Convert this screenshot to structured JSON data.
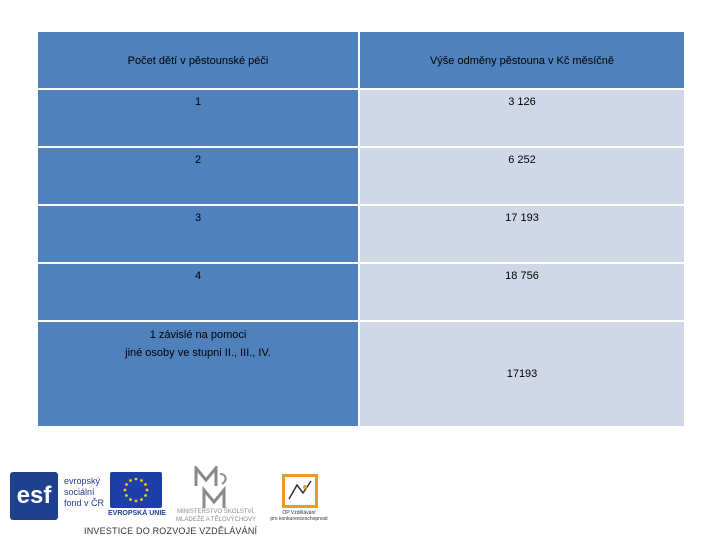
{
  "table": {
    "header": {
      "left": "Počet dětí v pěstounské péči",
      "right": "Výše odměny pěstouna v Kč měsíčně"
    },
    "rows": [
      {
        "left": "1",
        "right": "3 126"
      },
      {
        "left": "2",
        "right": "6 252"
      },
      {
        "left": "3",
        "right": "17 193"
      },
      {
        "left": "4",
        "right": "18 756"
      }
    ],
    "last_row": {
      "left_line1": "1 závislé na pomoci",
      "left_line2": "jiné osoby ve stupni II., III., IV.",
      "right": "17193"
    }
  },
  "footer": {
    "esf_mark": "esf",
    "esf_text": "evropský sociální fond v ČR",
    "eu_caption": "EVROPSKÁ UNIE",
    "msmt_caption_1": "MINISTERSTVO ŠKOLSTVÍ,",
    "msmt_caption_2": "MLÁDEŽE A TĚLOVÝCHOVY",
    "op_caption_1": "OP Vzdělávání",
    "op_caption_2": "pro konkurenceschopnost",
    "tagline": "INVESTICE DO ROZVOJE VZDĚLÁVÁNÍ"
  },
  "colors": {
    "header_blue": "#4f81bd",
    "cell_light": "#d0d8e8",
    "esf_blue": "#1f3f8f",
    "eu_star": "#ffcc00",
    "op_orange": "#e89a2a"
  },
  "icons": [
    "esf-logo",
    "eu-flag-icon",
    "msmt-logo-icon",
    "op-logo-icon"
  ]
}
